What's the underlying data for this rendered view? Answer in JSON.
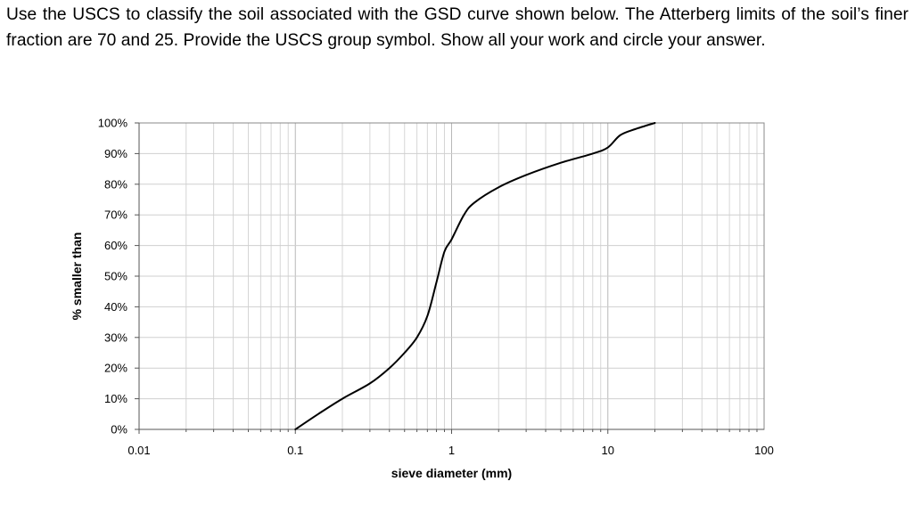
{
  "question": {
    "text": "Use the USCS to classify the soil associated with the GSD curve shown below. The Atterberg limits of the soil’s finer fraction are 70 and 25. Provide the USCS group symbol. Show all your work and circle your answer."
  },
  "chart_data": {
    "type": "line",
    "title": "",
    "xlabel": "sieve diameter (mm)",
    "ylabel": "% smaller than",
    "xscale": "log",
    "xlim": [
      0.01,
      100
    ],
    "ylim": [
      0,
      100
    ],
    "x_ticks": [
      {
        "value": 0.01,
        "label": "0.01"
      },
      {
        "value": 0.1,
        "label": "0.1"
      },
      {
        "value": 1,
        "label": "1"
      },
      {
        "value": 10,
        "label": "10"
      },
      {
        "value": 100,
        "label": "100"
      }
    ],
    "y_ticks": [
      {
        "value": 0,
        "label": "0%"
      },
      {
        "value": 10,
        "label": "10%"
      },
      {
        "value": 20,
        "label": "20%"
      },
      {
        "value": 30,
        "label": "30%"
      },
      {
        "value": 40,
        "label": "40%"
      },
      {
        "value": 50,
        "label": "50%"
      },
      {
        "value": 60,
        "label": "60%"
      },
      {
        "value": 70,
        "label": "70%"
      },
      {
        "value": 80,
        "label": "80%"
      },
      {
        "value": 90,
        "label": "90%"
      },
      {
        "value": 100,
        "label": "100%"
      }
    ],
    "grid": true,
    "legend": "none",
    "series": [
      {
        "color": "#000000",
        "x": [
          0.1,
          0.14,
          0.2,
          0.3,
          0.4,
          0.5,
          0.6,
          0.7,
          0.8,
          0.9,
          1.0,
          1.2,
          1.4,
          2.0,
          3.0,
          5.0,
          8.0,
          10.0,
          12.0,
          15.0,
          20.0
        ],
        "y": [
          0,
          5,
          10,
          15,
          20,
          25,
          30,
          37,
          48,
          58,
          62,
          70,
          74,
          79,
          83,
          87,
          90,
          92,
          96,
          98,
          100
        ]
      }
    ]
  }
}
